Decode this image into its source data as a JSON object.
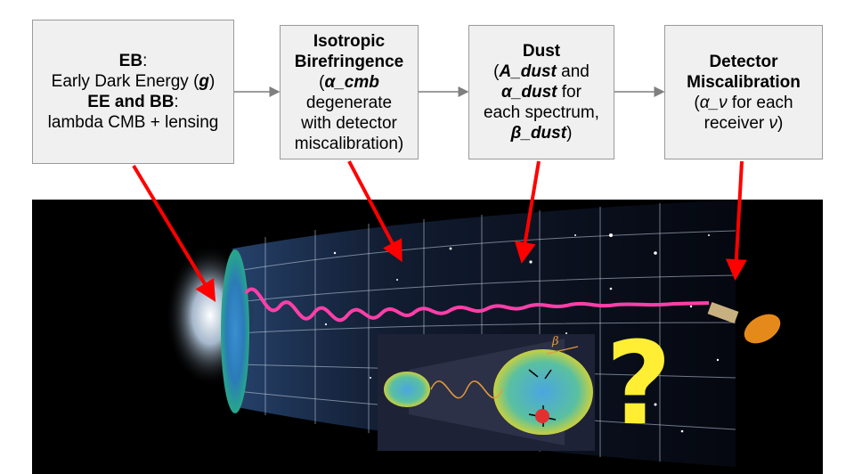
{
  "boxes": {
    "eb": {
      "line1_bold": "EB",
      "line1_rest": ":",
      "line2_pre": "Early Dark Energy (",
      "line2_var": "g",
      "line2_post": ")",
      "line3_bold": "EE and BB",
      "line3_rest": ":",
      "line4": "lambda CMB + lensing"
    },
    "iso": {
      "title1": "Isotropic",
      "title2": "Birefringence",
      "line3_pre": "(",
      "line3_var": "α_cmb",
      "line4": "degenerate",
      "line5": "with detector",
      "line6": "miscalibration)"
    },
    "dust": {
      "title": "Dust",
      "line2_pre": "(",
      "line2_var": "A_dust",
      "line2_post": " and",
      "line3_var": "α_dust",
      "line3_post": " for",
      "line4": "each spectrum,",
      "line5_var": "β_dust",
      "line5_post": ")"
    },
    "det": {
      "title1": "Detector",
      "title2": "Miscalibration",
      "line3_pre": "(",
      "line3_var": "α_ν",
      "line3_post": "  for each",
      "line4_pre": "receiver ",
      "line4_var": "ν",
      "line4_post": ")"
    }
  },
  "inset": {
    "beta": "β"
  },
  "question_mark": "?",
  "colors": {
    "box_fill": "#f0f0f0",
    "box_border": "#9a9a9a",
    "connector": "#7f7f7f",
    "pointer_arrow": "#ff0000",
    "wave": "#ff3fa8",
    "question": "#ffee33"
  }
}
